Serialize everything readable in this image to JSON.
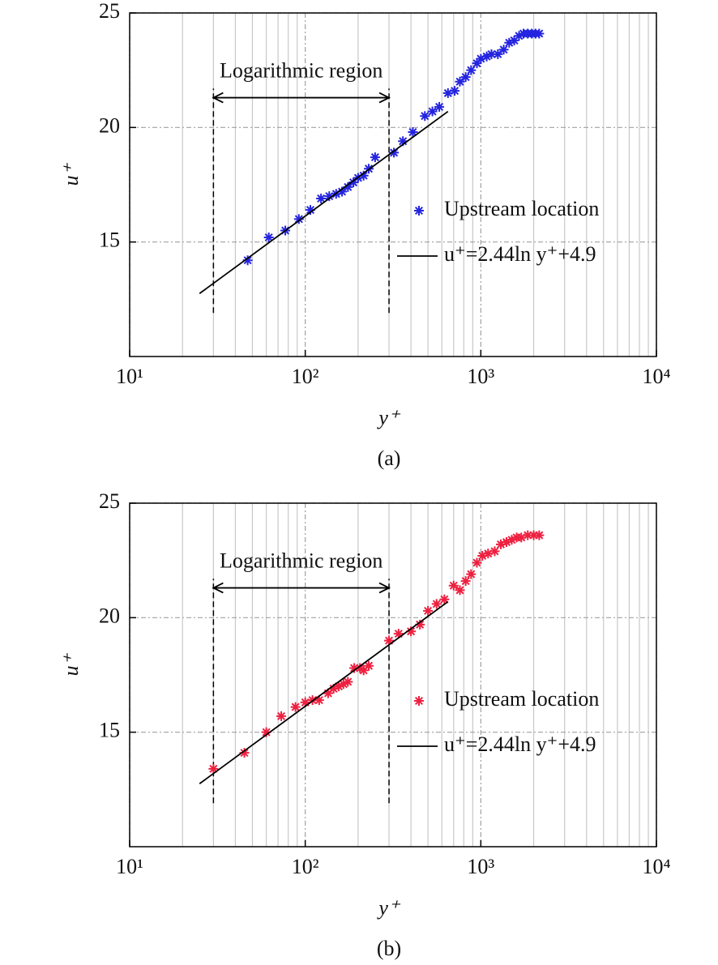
{
  "chart_data": [
    {
      "type": "scatter",
      "caption": "(a)",
      "xlabel": "y⁺",
      "ylabel": "u⁺",
      "xscale": "log",
      "xlim": [
        10,
        10000
      ],
      "xticks": [
        {
          "value": 10,
          "label": "10¹"
        },
        {
          "value": 100,
          "label": "10²"
        },
        {
          "value": 1000,
          "label": "10³"
        },
        {
          "value": 10000,
          "label": "10⁴"
        }
      ],
      "xminorticks": [
        20,
        30,
        40,
        50,
        60,
        70,
        80,
        90,
        200,
        300,
        400,
        500,
        600,
        700,
        800,
        900,
        2000,
        3000,
        4000,
        5000,
        6000,
        7000,
        8000,
        9000
      ],
      "ylim": [
        10,
        25
      ],
      "yticks": [
        15,
        20,
        25
      ],
      "grid": true,
      "legend": "right",
      "annotation": {
        "text": "Logarithmic region",
        "x": [
          30,
          300
        ],
        "y": 21.3,
        "y_range": [
          11.9,
          21.7
        ]
      },
      "series": [
        {
          "name": "Upstream location",
          "color": "#2424e0",
          "marker": "asterisk",
          "x": [
            47,
            62,
            77,
            92,
            107,
            123,
            137,
            150,
            162,
            175,
            188,
            200,
            215,
            230,
            250,
            320,
            360,
            410,
            480,
            530,
            580,
            650,
            710,
            760,
            820,
            880,
            950,
            1000,
            1080,
            1150,
            1250,
            1350,
            1450,
            1550,
            1650,
            1750,
            1850,
            1950,
            2050,
            2150
          ],
          "values": [
            14.2,
            15.2,
            15.5,
            16.0,
            16.4,
            16.9,
            17.0,
            17.1,
            17.2,
            17.4,
            17.6,
            17.8,
            17.9,
            18.2,
            18.7,
            18.9,
            19.4,
            19.8,
            20.5,
            20.7,
            20.9,
            21.5,
            21.6,
            22.0,
            22.2,
            22.5,
            22.8,
            23.0,
            23.1,
            23.2,
            23.2,
            23.4,
            23.7,
            23.8,
            24.0,
            24.1,
            24.1,
            24.1,
            24.1,
            24.1
          ]
        },
        {
          "name": "u⁺=2.44ln y⁺+4.9",
          "type": "line",
          "color": "#000000",
          "x": [
            25,
            650
          ],
          "values": [
            12.75,
            20.7
          ]
        }
      ]
    },
    {
      "type": "scatter",
      "caption": "(b)",
      "xlabel": "y⁺",
      "ylabel": "u⁺",
      "xscale": "log",
      "xlim": [
        10,
        10000
      ],
      "xticks": [
        {
          "value": 10,
          "label": "10¹"
        },
        {
          "value": 100,
          "label": "10²"
        },
        {
          "value": 1000,
          "label": "10³"
        },
        {
          "value": 10000,
          "label": "10⁴"
        }
      ],
      "xminorticks": [
        20,
        30,
        40,
        50,
        60,
        70,
        80,
        90,
        200,
        300,
        400,
        500,
        600,
        700,
        800,
        900,
        2000,
        3000,
        4000,
        5000,
        6000,
        7000,
        8000,
        9000
      ],
      "ylim": [
        10,
        25
      ],
      "yticks": [
        15,
        20,
        25
      ],
      "grid": true,
      "legend": "right",
      "annotation": {
        "text": "Logarithmic region",
        "x": [
          30,
          300
        ],
        "y": 21.3,
        "y_range": [
          11.9,
          21.7
        ]
      },
      "series": [
        {
          "name": "Upstream location",
          "color": "#ee2040",
          "marker": "asterisk",
          "x": [
            30,
            45,
            60,
            73,
            88,
            100,
            110,
            120,
            135,
            145,
            155,
            165,
            175,
            190,
            205,
            215,
            230,
            300,
            340,
            400,
            450,
            500,
            560,
            620,
            700,
            760,
            820,
            880,
            950,
            1020,
            1100,
            1200,
            1300,
            1400,
            1500,
            1600,
            1700,
            1850,
            2000,
            2150
          ],
          "values": [
            13.4,
            14.1,
            15.0,
            15.7,
            16.1,
            16.3,
            16.4,
            16.4,
            16.7,
            16.9,
            17.0,
            17.1,
            17.2,
            17.8,
            17.8,
            17.7,
            17.9,
            19.0,
            19.3,
            19.4,
            19.7,
            20.3,
            20.6,
            20.8,
            21.4,
            21.2,
            21.6,
            21.9,
            22.4,
            22.7,
            22.8,
            22.9,
            23.2,
            23.3,
            23.4,
            23.5,
            23.5,
            23.6,
            23.6,
            23.6
          ]
        },
        {
          "name": "u⁺=2.44ln y⁺+4.9",
          "type": "line",
          "color": "#000000",
          "x": [
            25,
            650
          ],
          "values": [
            12.75,
            20.7
          ]
        }
      ]
    }
  ]
}
